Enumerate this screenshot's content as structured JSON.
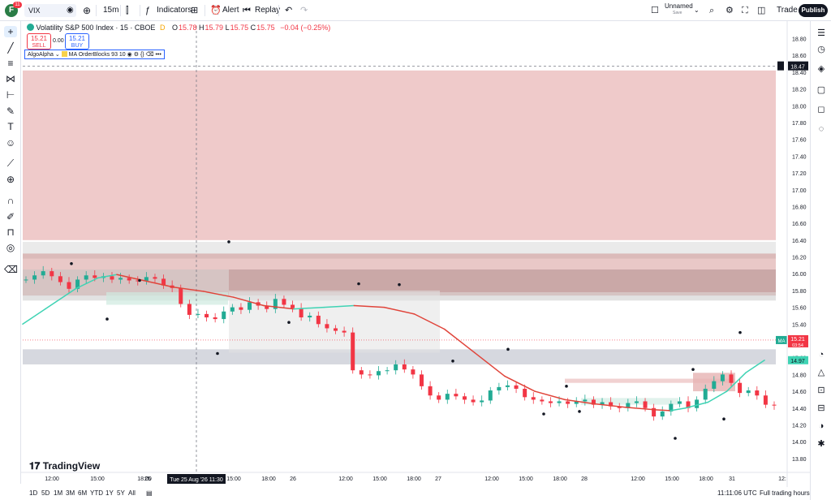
{
  "topbar": {
    "avatar_letter": "F",
    "avatar_badge": "11",
    "symbol": "VIX",
    "interval": "15m",
    "indicators_label": "Indicators",
    "alert_label": "Alert",
    "replay_label": "Replay",
    "layout_name": "Unnamed",
    "layout_status": "Save",
    "trade_label": "Trade",
    "publish_label": "Publish"
  },
  "legend": {
    "title": "Volatility S&P 500 Index · 15 · CBOE",
    "market_status": "D",
    "open_label": "O",
    "open": "15.78",
    "high_label": "H",
    "high": "15.79",
    "low_label": "L",
    "low": "15.75",
    "close_label": "C",
    "close": "15.75",
    "change": "−0.04 (−0.25%)",
    "sell_price": "15.21",
    "sell_label": "SELL",
    "spread": "0.00",
    "buy_price": "15.21",
    "buy_label": "BUY",
    "indicator_1": "AlgoAlpha",
    "indicator_2": "MA OrderBlocks",
    "indicator_2_params": "93 10"
  },
  "chart_data": {
    "type": "candlestick",
    "symbol": "VIX",
    "interval": "15m",
    "y_ticks": [
      "18.80",
      "18.60",
      "18.40",
      "18.20",
      "18.00",
      "17.80",
      "17.60",
      "17.40",
      "17.20",
      "17.00",
      "16.80",
      "16.60",
      "16.40",
      "16.20",
      "16.00",
      "15.80",
      "15.60",
      "15.40",
      "15.20",
      "15.00",
      "14.80",
      "14.60",
      "14.40",
      "14.20",
      "14.00",
      "13.80"
    ],
    "ylim": [
      13.75,
      18.95
    ],
    "x_ticks": [
      "12:00",
      "15:00",
      "18:00",
      "25",
      "15:00",
      "18:00",
      "26",
      "12:00",
      "15:00",
      "18:00",
      "27",
      "12:00",
      "15:00",
      "18:00",
      "28",
      "12:00",
      "15:00",
      "18:00",
      "31",
      "12:"
    ],
    "crosshair_date": "Tue 25 Aug '26",
    "crosshair_time": "11:30",
    "crosshair_price": "18.47",
    "last_price": "15.21",
    "countdown": "03:54",
    "ma_value": "14.97",
    "ma_label": "MA",
    "path": [
      15.93,
      15.98,
      16.03,
      15.97,
      15.9,
      15.82,
      15.93,
      15.98,
      15.95,
      15.97,
      15.93,
      15.95,
      15.92,
      15.91,
      15.96,
      15.94,
      15.86,
      15.83,
      15.64,
      15.51,
      15.52,
      15.48,
      15.46,
      15.55,
      15.6,
      15.57,
      15.66,
      15.62,
      15.58,
      15.7,
      15.63,
      15.59,
      15.48,
      15.5,
      15.4,
      15.35,
      15.32,
      15.3,
      14.85,
      14.8,
      14.79,
      14.84,
      14.85,
      14.92,
      14.86,
      14.8,
      14.66,
      14.55,
      14.5,
      14.57,
      14.54,
      14.5,
      14.47,
      14.49,
      14.61,
      14.65,
      14.67,
      14.63,
      14.53,
      14.5,
      14.48,
      14.46,
      14.48,
      14.45,
      14.48,
      14.5,
      14.44,
      14.47,
      14.42,
      14.4,
      14.46,
      14.48,
      14.4,
      14.3,
      14.36,
      14.45,
      14.48,
      14.4,
      14.5,
      14.63,
      14.72,
      14.8,
      14.7,
      14.58,
      14.61,
      14.55,
      14.44,
      14.43
    ],
    "ma": [
      {
        "x": 0.0,
        "y": 15.4
      },
      {
        "x": 0.03,
        "y": 15.58
      },
      {
        "x": 0.07,
        "y": 15.82
      },
      {
        "x": 0.1,
        "y": 15.95
      },
      {
        "x": 0.125,
        "y": 15.99
      },
      {
        "x": 0.16,
        "y": 15.92
      },
      {
        "x": 0.2,
        "y": 15.84
      },
      {
        "x": 0.24,
        "y": 15.79
      },
      {
        "x": 0.28,
        "y": 15.72
      },
      {
        "x": 0.32,
        "y": 15.62
      },
      {
        "x": 0.36,
        "y": 15.58
      },
      {
        "x": 0.4,
        "y": 15.6
      },
      {
        "x": 0.44,
        "y": 15.62
      },
      {
        "x": 0.48,
        "y": 15.6
      },
      {
        "x": 0.52,
        "y": 15.52
      },
      {
        "x": 0.56,
        "y": 15.34
      },
      {
        "x": 0.6,
        "y": 15.06
      },
      {
        "x": 0.64,
        "y": 14.78
      },
      {
        "x": 0.68,
        "y": 14.6
      },
      {
        "x": 0.72,
        "y": 14.5
      },
      {
        "x": 0.76,
        "y": 14.45
      },
      {
        "x": 0.8,
        "y": 14.41
      },
      {
        "x": 0.84,
        "y": 14.38
      },
      {
        "x": 0.86,
        "y": 14.37
      },
      {
        "x": 0.88,
        "y": 14.4
      },
      {
        "x": 0.91,
        "y": 14.47
      },
      {
        "x": 0.935,
        "y": 14.6
      },
      {
        "x": 0.96,
        "y": 14.82
      },
      {
        "x": 0.985,
        "y": 14.97
      }
    ],
    "zones": [
      {
        "y0": 16.4,
        "y1": 18.42,
        "color": "#e9b5b5",
        "opacity": 0.72
      },
      {
        "y0": 16.18,
        "y1": 16.38,
        "color": "#d9d9d9",
        "opacity": 0.55
      },
      {
        "y0": 15.74,
        "y1": 16.24,
        "color": "#c0605f",
        "opacity": 0.35
      },
      {
        "y0": 15.68,
        "y1": 16.05,
        "color": "#bfbfbf",
        "opacity": 0.45
      },
      {
        "y0": 14.92,
        "y1": 15.1,
        "color": "#d1d4dc",
        "opacity": 0.9
      }
    ]
  },
  "bottombar": {
    "ranges": [
      "1D",
      "5D",
      "1M",
      "3M",
      "6M",
      "YTD",
      "1Y",
      "5Y",
      "All"
    ],
    "clock": "11:11:06 UTC",
    "session": "Full trading hours",
    "watermark": "TradingView"
  }
}
